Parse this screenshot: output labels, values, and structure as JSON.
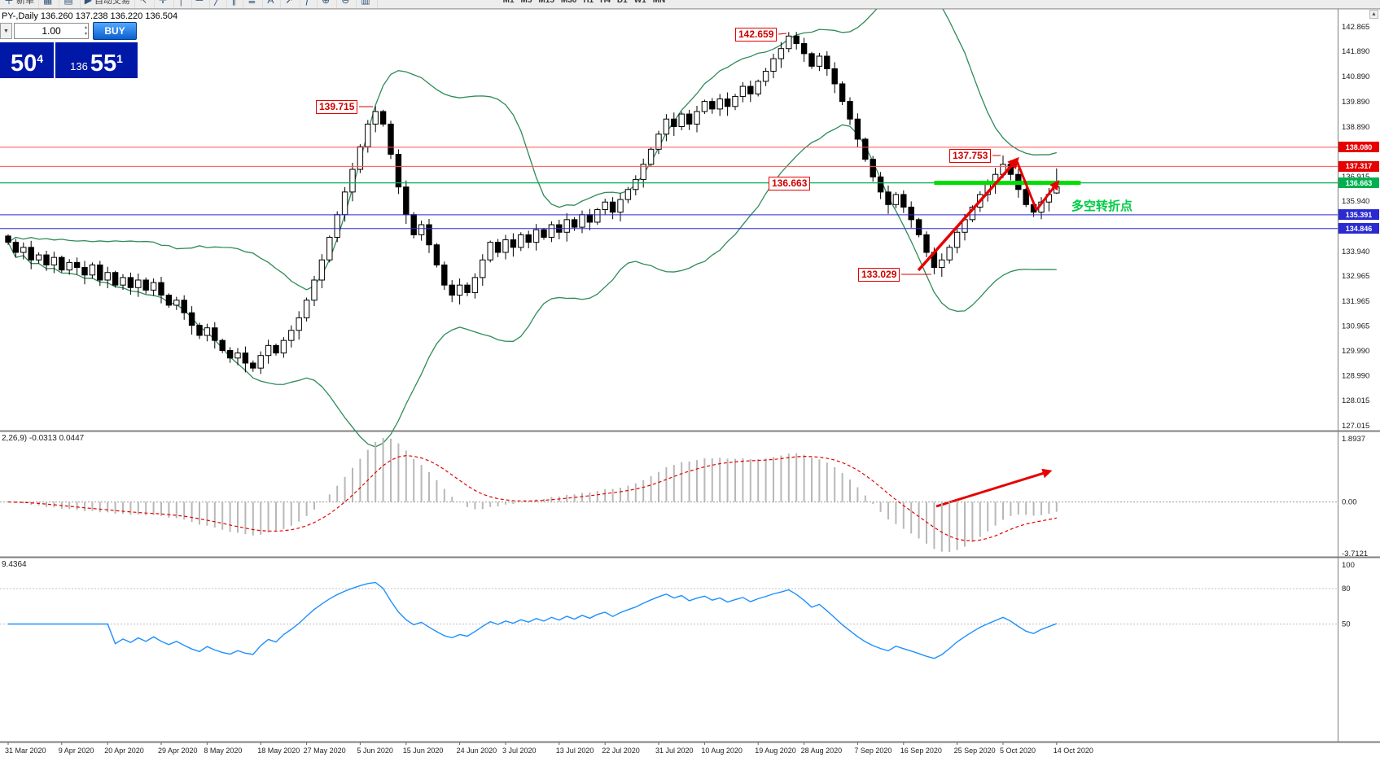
{
  "chrome": {
    "scroll_up_icon": "▲"
  },
  "toolbar": {
    "items": [
      {
        "name": "new-order",
        "glyph": "＋",
        "label": "新单"
      },
      {
        "name": "chart-window",
        "glyph": "▦",
        "label": ""
      },
      {
        "name": "profiles",
        "glyph": "▤",
        "label": ""
      },
      {
        "name": "auto-trading",
        "glyph": "▶",
        "label": "自动交易"
      },
      {
        "name": "cursor",
        "glyph": "↖",
        "label": ""
      },
      {
        "name": "crosshair",
        "glyph": "✛",
        "label": ""
      },
      {
        "name": "vertical-line",
        "glyph": "│",
        "label": ""
      },
      {
        "name": "horizontal-line",
        "glyph": "─",
        "label": ""
      },
      {
        "name": "trendline",
        "glyph": "╱",
        "label": ""
      },
      {
        "name": "channel",
        "glyph": "∥",
        "label": ""
      },
      {
        "name": "fibonacci",
        "glyph": "≣",
        "label": ""
      },
      {
        "name": "text",
        "glyph": "A",
        "label": ""
      },
      {
        "name": "arrow-object",
        "glyph": "➚",
        "label": ""
      },
      {
        "name": "indicators",
        "glyph": "ƒ",
        "label": ""
      },
      {
        "name": "zoom-in",
        "glyph": "⊕",
        "label": ""
      },
      {
        "name": "zoom-out",
        "glyph": "⊖",
        "label": ""
      },
      {
        "name": "tile-windows",
        "glyph": "▥",
        "label": ""
      }
    ],
    "timeframes": [
      "M1",
      "M5",
      "M15",
      "M30",
      "H1",
      "H4",
      "D1",
      "W1",
      "MN"
    ]
  },
  "chart": {
    "title": "PY-,Daily 136.260 137.238 136.220 136.504"
  },
  "trade_panel": {
    "dropdown_icon": "▼",
    "volume": "1.00",
    "spin_up_icon": "▴",
    "spin_down_icon": "▾",
    "buy_label": "BUY",
    "sell_main": "50",
    "sell_sup": "4",
    "buy_prefix": "136",
    "buy_main": "55",
    "buy_sup": "1"
  },
  "annotations": {
    "callouts": [
      "142.659",
      "139.715",
      "137.753",
      "136.663",
      "133.029"
    ],
    "note": "多空转折点",
    "arrows": [
      "impulse-up-arrow",
      "pullback-v-arrow",
      "breakout-up-arrow",
      "macd-up-arrow"
    ]
  },
  "price_tags": [
    {
      "label": "138.080",
      "color": "#e60000"
    },
    {
      "label": "137.317",
      "color": "#e60000"
    },
    {
      "label": "136.663",
      "color": "#00b050"
    },
    {
      "label": "135.391",
      "color": "#2a2ad0"
    },
    {
      "label": "134.846",
      "color": "#2a2ad0"
    }
  ],
  "chart_data": {
    "type": "candlestick",
    "timeframe": "Daily",
    "ohlc_current": {
      "open": 136.26,
      "high": 137.238,
      "low": 136.22,
      "close": 136.504
    },
    "closes": [
      134.3,
      133.9,
      134.1,
      133.6,
      133.8,
      133.4,
      133.7,
      133.2,
      133.5,
      133.3,
      133.0,
      133.4,
      132.8,
      133.1,
      132.6,
      132.9,
      132.5,
      132.8,
      132.4,
      132.7,
      132.2,
      131.8,
      132.0,
      131.5,
      131.0,
      130.6,
      130.9,
      130.4,
      130.0,
      129.7,
      129.9,
      129.5,
      129.3,
      129.8,
      130.2,
      129.9,
      130.4,
      130.8,
      131.3,
      132.0,
      132.8,
      133.6,
      134.5,
      135.4,
      136.3,
      137.2,
      138.1,
      139.0,
      139.5,
      139.0,
      137.8,
      136.5,
      135.4,
      134.6,
      135.0,
      134.2,
      133.4,
      132.6,
      132.2,
      132.6,
      132.3,
      132.9,
      133.6,
      134.3,
      133.9,
      134.4,
      134.1,
      134.6,
      134.3,
      134.8,
      134.5,
      135.0,
      134.7,
      135.2,
      134.9,
      135.4,
      135.1,
      135.6,
      135.9,
      135.5,
      136.0,
      136.4,
      136.8,
      137.4,
      138.0,
      138.6,
      139.2,
      138.9,
      139.4,
      139.0,
      139.5,
      139.9,
      139.6,
      140.0,
      139.7,
      140.1,
      140.5,
      140.2,
      140.7,
      141.1,
      141.6,
      142.0,
      142.5,
      142.2,
      141.8,
      141.3,
      141.7,
      141.2,
      140.6,
      139.9,
      139.2,
      138.4,
      137.6,
      136.9,
      136.3,
      135.8,
      136.2,
      135.7,
      135.2,
      134.6,
      133.9,
      133.3,
      133.6,
      134.1,
      134.7,
      135.2,
      135.7,
      136.2,
      136.6,
      137.0,
      137.4,
      137.0,
      136.4,
      135.8,
      135.5,
      135.9,
      136.2,
      136.504
    ],
    "extremes": [
      {
        "index": 48,
        "high": 139.715
      },
      {
        "index": 102,
        "high": 142.659
      },
      {
        "index": 121,
        "low": 133.029
      },
      {
        "index": 130,
        "high": 137.753
      },
      {
        "index": 137,
        "open": 136.26,
        "high": 137.238,
        "low": 136.22
      }
    ],
    "x_labels": [
      "31 Mar 2020",
      "9 Apr 2020",
      "20 Apr 2020",
      "29 Apr 2020",
      "8 May 2020",
      "18 May 2020",
      "27 May 2020",
      "5 Jun 2020",
      "15 Jun 2020",
      "24 Jun 2020",
      "3 Jul 2020",
      "13 Jul 2020",
      "22 Jul 2020",
      "31 Jul 2020",
      "10 Aug 2020",
      "19 Aug 2020",
      "28 Aug 2020",
      "7 Sep 2020",
      "16 Sep 2020",
      "25 Sep 2020",
      "5 Oct 2020",
      "14 Oct 2020"
    ],
    "y_axis_labels": [
      "142.865",
      "141.890",
      "140.890",
      "139.890",
      "138.890",
      "136.915",
      "135.940",
      "133.940",
      "132.965",
      "131.965",
      "130.965",
      "129.990",
      "128.990",
      "128.015",
      "127.015"
    ],
    "horizontal_lines": [
      {
        "price": 138.08,
        "color": "#ff5050",
        "width": 1
      },
      {
        "price": 137.317,
        "color": "#ff5050",
        "width": 1
      },
      {
        "price": 136.663,
        "color": "#00b050",
        "width": 1.2
      },
      {
        "price": 135.391,
        "color": "#2a2ad0",
        "width": 1
      },
      {
        "price": 134.846,
        "color": "#2a2ad0",
        "width": 1
      }
    ],
    "highlight_segment": {
      "price": 136.663,
      "color": "#00dd00"
    },
    "bollinger": {
      "period": 20,
      "deviation": 2,
      "color": "#2E8B57"
    },
    "macd": {
      "label_visible": "2,26,9) -0.0313 0.0447",
      "main_value": "-0.0313",
      "signal_value": "0.0447",
      "scale_labels": [
        "1.8937",
        "0.00",
        "-3.7121"
      ],
      "histogram_color": "#b8b8b8",
      "signal_color": "#e60000"
    },
    "rsi": {
      "label_visible": "9.4364",
      "levels": [
        "100",
        "80",
        "50"
      ],
      "line_color": "#1E90FF"
    }
  }
}
